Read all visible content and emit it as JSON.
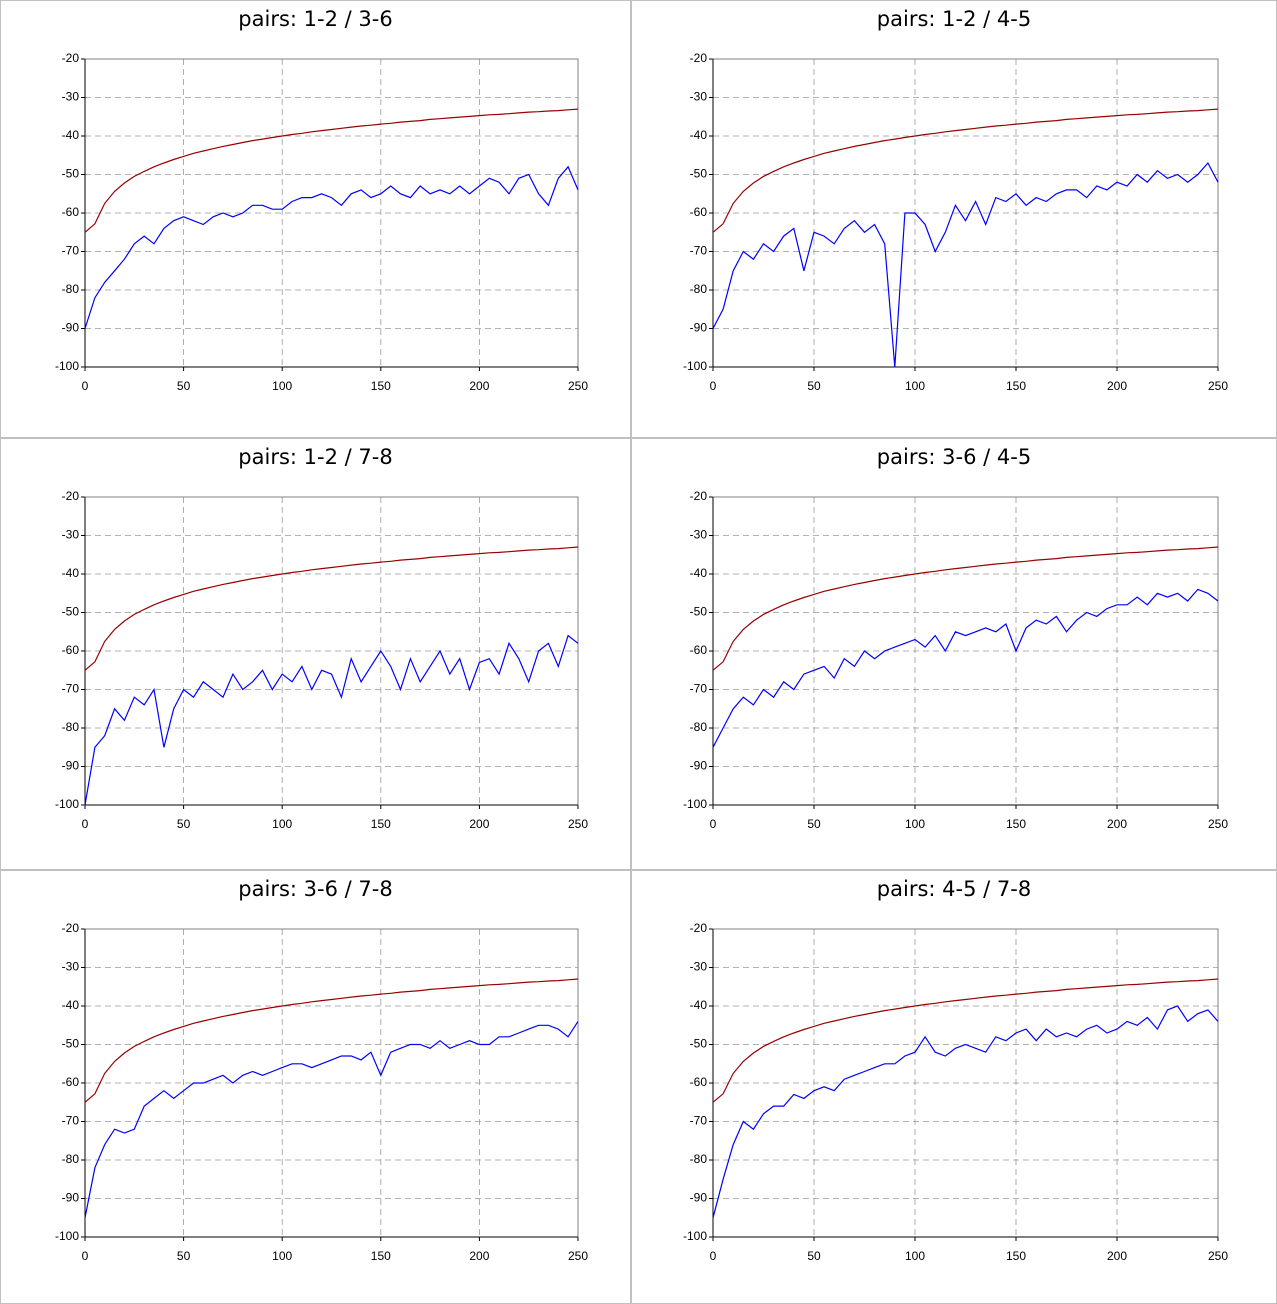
{
  "chart_data": [
    {
      "type": "line",
      "title": "pairs: 1-2 / 3-6",
      "x": [
        0,
        5,
        10,
        15,
        20,
        25,
        30,
        35,
        40,
        45,
        50,
        55,
        60,
        65,
        70,
        75,
        80,
        85,
        90,
        95,
        100,
        105,
        110,
        115,
        120,
        125,
        130,
        135,
        140,
        145,
        150,
        155,
        160,
        165,
        170,
        175,
        180,
        185,
        190,
        195,
        200,
        205,
        210,
        215,
        220,
        225,
        230,
        235,
        240,
        245,
        250
      ],
      "series": [
        {
          "color": "#990000",
          "values": [
            -65,
            -62.8,
            -57.5,
            -54.4,
            -52.2,
            -50.5,
            -49.2,
            -48.0,
            -47.0,
            -46.1,
            -45.3,
            -44.5,
            -43.9,
            -43.3,
            -42.7,
            -42.2,
            -41.7,
            -41.2,
            -40.8,
            -40.4,
            -40,
            -39.6,
            -39.3,
            -38.9,
            -38.6,
            -38.3,
            -38.0,
            -37.7,
            -37.4,
            -37.2,
            -36.9,
            -36.7,
            -36.4,
            -36.2,
            -36.0,
            -35.7,
            -35.5,
            -35.3,
            -35.1,
            -34.9,
            -34.7,
            -34.5,
            -34.4,
            -34.2,
            -34.0,
            -33.8,
            -33.7,
            -33.5,
            -33.4,
            -33.2,
            -33.0
          ]
        },
        {
          "color": "#0000ff",
          "values": [
            -90,
            -82,
            -78,
            -75,
            -72,
            -68,
            -66,
            -68,
            -64,
            -62,
            -61,
            -62,
            -63,
            -61,
            -60,
            -61,
            -60,
            -58,
            -58,
            -59,
            -59,
            -57,
            -56,
            -56,
            -55,
            -56,
            -58,
            -55,
            -54,
            -56,
            -55,
            -53,
            -55,
            -56,
            -53,
            -55,
            -54,
            -55,
            -53,
            -55,
            -53,
            -51,
            -52,
            -55,
            -51,
            -50,
            -55,
            -58,
            -51,
            -48,
            -54
          ]
        }
      ],
      "xlim": [
        0,
        250
      ],
      "ylim": [
        -100,
        -20
      ],
      "xticks": [
        0,
        50,
        100,
        150,
        200,
        250
      ],
      "yticks": [
        -100,
        -90,
        -80,
        -70,
        -60,
        -50,
        -40,
        -30,
        -20
      ],
      "grid": true
    },
    {
      "type": "line",
      "title": "pairs: 1-2 / 4-5",
      "x": [
        0,
        5,
        10,
        15,
        20,
        25,
        30,
        35,
        40,
        45,
        50,
        55,
        60,
        65,
        70,
        75,
        80,
        85,
        90,
        95,
        100,
        105,
        110,
        115,
        120,
        125,
        130,
        135,
        140,
        145,
        150,
        155,
        160,
        165,
        170,
        175,
        180,
        185,
        190,
        195,
        200,
        205,
        210,
        215,
        220,
        225,
        230,
        235,
        240,
        245,
        250
      ],
      "series": [
        {
          "color": "#990000",
          "values": [
            -65,
            -62.8,
            -57.5,
            -54.4,
            -52.2,
            -50.5,
            -49.2,
            -48.0,
            -47.0,
            -46.1,
            -45.3,
            -44.5,
            -43.9,
            -43.3,
            -42.7,
            -42.2,
            -41.7,
            -41.2,
            -40.8,
            -40.4,
            -40,
            -39.6,
            -39.3,
            -38.9,
            -38.6,
            -38.3,
            -38.0,
            -37.7,
            -37.4,
            -37.2,
            -36.9,
            -36.7,
            -36.4,
            -36.2,
            -36.0,
            -35.7,
            -35.5,
            -35.3,
            -35.1,
            -34.9,
            -34.7,
            -34.5,
            -34.4,
            -34.2,
            -34.0,
            -33.8,
            -33.7,
            -33.5,
            -33.4,
            -33.2,
            -33.0
          ]
        },
        {
          "color": "#0000ff",
          "values": [
            -90,
            -85,
            -75,
            -70,
            -72,
            -68,
            -70,
            -66,
            -64,
            -75,
            -65,
            -66,
            -68,
            -64,
            -62,
            -65,
            -63,
            -68,
            -100,
            -60,
            -60,
            -63,
            -70,
            -65,
            -58,
            -62,
            -57,
            -63,
            -56,
            -57,
            -55,
            -58,
            -56,
            -57,
            -55,
            -54,
            -54,
            -56,
            -53,
            -54,
            -52,
            -53,
            -50,
            -52,
            -49,
            -51,
            -50,
            -52,
            -50,
            -47,
            -52
          ]
        }
      ],
      "xlim": [
        0,
        250
      ],
      "ylim": [
        -100,
        -20
      ],
      "xticks": [
        0,
        50,
        100,
        150,
        200,
        250
      ],
      "yticks": [
        -100,
        -90,
        -80,
        -70,
        -60,
        -50,
        -40,
        -30,
        -20
      ],
      "grid": true
    },
    {
      "type": "line",
      "title": "pairs: 1-2 / 7-8",
      "x": [
        0,
        5,
        10,
        15,
        20,
        25,
        30,
        35,
        40,
        45,
        50,
        55,
        60,
        65,
        70,
        75,
        80,
        85,
        90,
        95,
        100,
        105,
        110,
        115,
        120,
        125,
        130,
        135,
        140,
        145,
        150,
        155,
        160,
        165,
        170,
        175,
        180,
        185,
        190,
        195,
        200,
        205,
        210,
        215,
        220,
        225,
        230,
        235,
        240,
        245,
        250
      ],
      "series": [
        {
          "color": "#990000",
          "values": [
            -65,
            -62.8,
            -57.5,
            -54.4,
            -52.2,
            -50.5,
            -49.2,
            -48.0,
            -47.0,
            -46.1,
            -45.3,
            -44.5,
            -43.9,
            -43.3,
            -42.7,
            -42.2,
            -41.7,
            -41.2,
            -40.8,
            -40.4,
            -40,
            -39.6,
            -39.3,
            -38.9,
            -38.6,
            -38.3,
            -38.0,
            -37.7,
            -37.4,
            -37.2,
            -36.9,
            -36.7,
            -36.4,
            -36.2,
            -36.0,
            -35.7,
            -35.5,
            -35.3,
            -35.1,
            -34.9,
            -34.7,
            -34.5,
            -34.4,
            -34.2,
            -34.0,
            -33.8,
            -33.7,
            -33.5,
            -33.4,
            -33.2,
            -33.0
          ]
        },
        {
          "color": "#0000ff",
          "values": [
            -100,
            -85,
            -82,
            -75,
            -78,
            -72,
            -74,
            -70,
            -85,
            -75,
            -70,
            -72,
            -68,
            -70,
            -72,
            -66,
            -70,
            -68,
            -65,
            -70,
            -66,
            -68,
            -64,
            -70,
            -65,
            -66,
            -72,
            -62,
            -68,
            -64,
            -60,
            -64,
            -70,
            -62,
            -68,
            -64,
            -60,
            -66,
            -62,
            -70,
            -63,
            -62,
            -66,
            -58,
            -62,
            -68,
            -60,
            -58,
            -64,
            -56,
            -58
          ]
        }
      ],
      "xlim": [
        0,
        250
      ],
      "ylim": [
        -100,
        -20
      ],
      "xticks": [
        0,
        50,
        100,
        150,
        200,
        250
      ],
      "yticks": [
        -100,
        -90,
        -80,
        -70,
        -60,
        -50,
        -40,
        -30,
        -20
      ],
      "grid": true
    },
    {
      "type": "line",
      "title": "pairs: 3-6 / 4-5",
      "x": [
        0,
        5,
        10,
        15,
        20,
        25,
        30,
        35,
        40,
        45,
        50,
        55,
        60,
        65,
        70,
        75,
        80,
        85,
        90,
        95,
        100,
        105,
        110,
        115,
        120,
        125,
        130,
        135,
        140,
        145,
        150,
        155,
        160,
        165,
        170,
        175,
        180,
        185,
        190,
        195,
        200,
        205,
        210,
        215,
        220,
        225,
        230,
        235,
        240,
        245,
        250
      ],
      "series": [
        {
          "color": "#990000",
          "values": [
            -65,
            -62.8,
            -57.5,
            -54.4,
            -52.2,
            -50.5,
            -49.2,
            -48.0,
            -47.0,
            -46.1,
            -45.3,
            -44.5,
            -43.9,
            -43.3,
            -42.7,
            -42.2,
            -41.7,
            -41.2,
            -40.8,
            -40.4,
            -40,
            -39.6,
            -39.3,
            -38.9,
            -38.6,
            -38.3,
            -38.0,
            -37.7,
            -37.4,
            -37.2,
            -36.9,
            -36.7,
            -36.4,
            -36.2,
            -36.0,
            -35.7,
            -35.5,
            -35.3,
            -35.1,
            -34.9,
            -34.7,
            -34.5,
            -34.4,
            -34.2,
            -34.0,
            -33.8,
            -33.7,
            -33.5,
            -33.4,
            -33.2,
            -33.0
          ]
        },
        {
          "color": "#0000ff",
          "values": [
            -85,
            -80,
            -75,
            -72,
            -74,
            -70,
            -72,
            -68,
            -70,
            -66,
            -65,
            -64,
            -67,
            -62,
            -64,
            -60,
            -62,
            -60,
            -59,
            -58,
            -57,
            -59,
            -56,
            -60,
            -55,
            -56,
            -55,
            -54,
            -55,
            -53,
            -60,
            -54,
            -52,
            -53,
            -51,
            -55,
            -52,
            -50,
            -51,
            -49,
            -48,
            -48,
            -46,
            -48,
            -45,
            -46,
            -45,
            -47,
            -44,
            -45,
            -47
          ]
        }
      ],
      "xlim": [
        0,
        250
      ],
      "ylim": [
        -100,
        -20
      ],
      "xticks": [
        0,
        50,
        100,
        150,
        200,
        250
      ],
      "yticks": [
        -100,
        -90,
        -80,
        -70,
        -60,
        -50,
        -40,
        -30,
        -20
      ],
      "grid": true
    },
    {
      "type": "line",
      "title": "pairs: 3-6 / 7-8",
      "x": [
        0,
        5,
        10,
        15,
        20,
        25,
        30,
        35,
        40,
        45,
        50,
        55,
        60,
        65,
        70,
        75,
        80,
        85,
        90,
        95,
        100,
        105,
        110,
        115,
        120,
        125,
        130,
        135,
        140,
        145,
        150,
        155,
        160,
        165,
        170,
        175,
        180,
        185,
        190,
        195,
        200,
        205,
        210,
        215,
        220,
        225,
        230,
        235,
        240,
        245,
        250
      ],
      "series": [
        {
          "color": "#990000",
          "values": [
            -65,
            -62.8,
            -57.5,
            -54.4,
            -52.2,
            -50.5,
            -49.2,
            -48.0,
            -47.0,
            -46.1,
            -45.3,
            -44.5,
            -43.9,
            -43.3,
            -42.7,
            -42.2,
            -41.7,
            -41.2,
            -40.8,
            -40.4,
            -40,
            -39.6,
            -39.3,
            -38.9,
            -38.6,
            -38.3,
            -38.0,
            -37.7,
            -37.4,
            -37.2,
            -36.9,
            -36.7,
            -36.4,
            -36.2,
            -36.0,
            -35.7,
            -35.5,
            -35.3,
            -35.1,
            -34.9,
            -34.7,
            -34.5,
            -34.4,
            -34.2,
            -34.0,
            -33.8,
            -33.7,
            -33.5,
            -33.4,
            -33.2,
            -33.0
          ]
        },
        {
          "color": "#0000ff",
          "values": [
            -95,
            -82,
            -76,
            -72,
            -73,
            -72,
            -66,
            -64,
            -62,
            -64,
            -62,
            -60,
            -60,
            -59,
            -58,
            -60,
            -58,
            -57,
            -58,
            -57,
            -56,
            -55,
            -55,
            -56,
            -55,
            -54,
            -53,
            -53,
            -54,
            -52,
            -58,
            -52,
            -51,
            -50,
            -50,
            -51,
            -49,
            -51,
            -50,
            -49,
            -50,
            -50,
            -48,
            -48,
            -47,
            -46,
            -45,
            -45,
            -46,
            -48,
            -44
          ]
        }
      ],
      "xlim": [
        0,
        250
      ],
      "ylim": [
        -100,
        -20
      ],
      "xticks": [
        0,
        50,
        100,
        150,
        200,
        250
      ],
      "yticks": [
        -100,
        -90,
        -80,
        -70,
        -60,
        -50,
        -40,
        -30,
        -20
      ],
      "grid": true
    },
    {
      "type": "line",
      "title": "pairs: 4-5 / 7-8",
      "x": [
        0,
        5,
        10,
        15,
        20,
        25,
        30,
        35,
        40,
        45,
        50,
        55,
        60,
        65,
        70,
        75,
        80,
        85,
        90,
        95,
        100,
        105,
        110,
        115,
        120,
        125,
        130,
        135,
        140,
        145,
        150,
        155,
        160,
        165,
        170,
        175,
        180,
        185,
        190,
        195,
        200,
        205,
        210,
        215,
        220,
        225,
        230,
        235,
        240,
        245,
        250
      ],
      "series": [
        {
          "color": "#990000",
          "values": [
            -65,
            -62.8,
            -57.5,
            -54.4,
            -52.2,
            -50.5,
            -49.2,
            -48.0,
            -47.0,
            -46.1,
            -45.3,
            -44.5,
            -43.9,
            -43.3,
            -42.7,
            -42.2,
            -41.7,
            -41.2,
            -40.8,
            -40.4,
            -40,
            -39.6,
            -39.3,
            -38.9,
            -38.6,
            -38.3,
            -38.0,
            -37.7,
            -37.4,
            -37.2,
            -36.9,
            -36.7,
            -36.4,
            -36.2,
            -36.0,
            -35.7,
            -35.5,
            -35.3,
            -35.1,
            -34.9,
            -34.7,
            -34.5,
            -34.4,
            -34.2,
            -34.0,
            -33.8,
            -33.7,
            -33.5,
            -33.4,
            -33.2,
            -33.0
          ]
        },
        {
          "color": "#0000ff",
          "values": [
            -95,
            -85,
            -76,
            -70,
            -72,
            -68,
            -66,
            -66,
            -63,
            -64,
            -62,
            -61,
            -62,
            -59,
            -58,
            -57,
            -56,
            -55,
            -55,
            -53,
            -52,
            -48,
            -52,
            -53,
            -51,
            -50,
            -51,
            -52,
            -48,
            -49,
            -47,
            -46,
            -49,
            -46,
            -48,
            -47,
            -48,
            -46,
            -45,
            -47,
            -46,
            -44,
            -45,
            -43,
            -46,
            -41,
            -40,
            -44,
            -42,
            -41,
            -44
          ]
        }
      ],
      "xlim": [
        0,
        250
      ],
      "ylim": [
        -100,
        -20
      ],
      "xticks": [
        0,
        50,
        100,
        150,
        200,
        250
      ],
      "yticks": [
        -100,
        -90,
        -80,
        -70,
        -60,
        -50,
        -40,
        -30,
        -20
      ],
      "grid": true
    }
  ]
}
